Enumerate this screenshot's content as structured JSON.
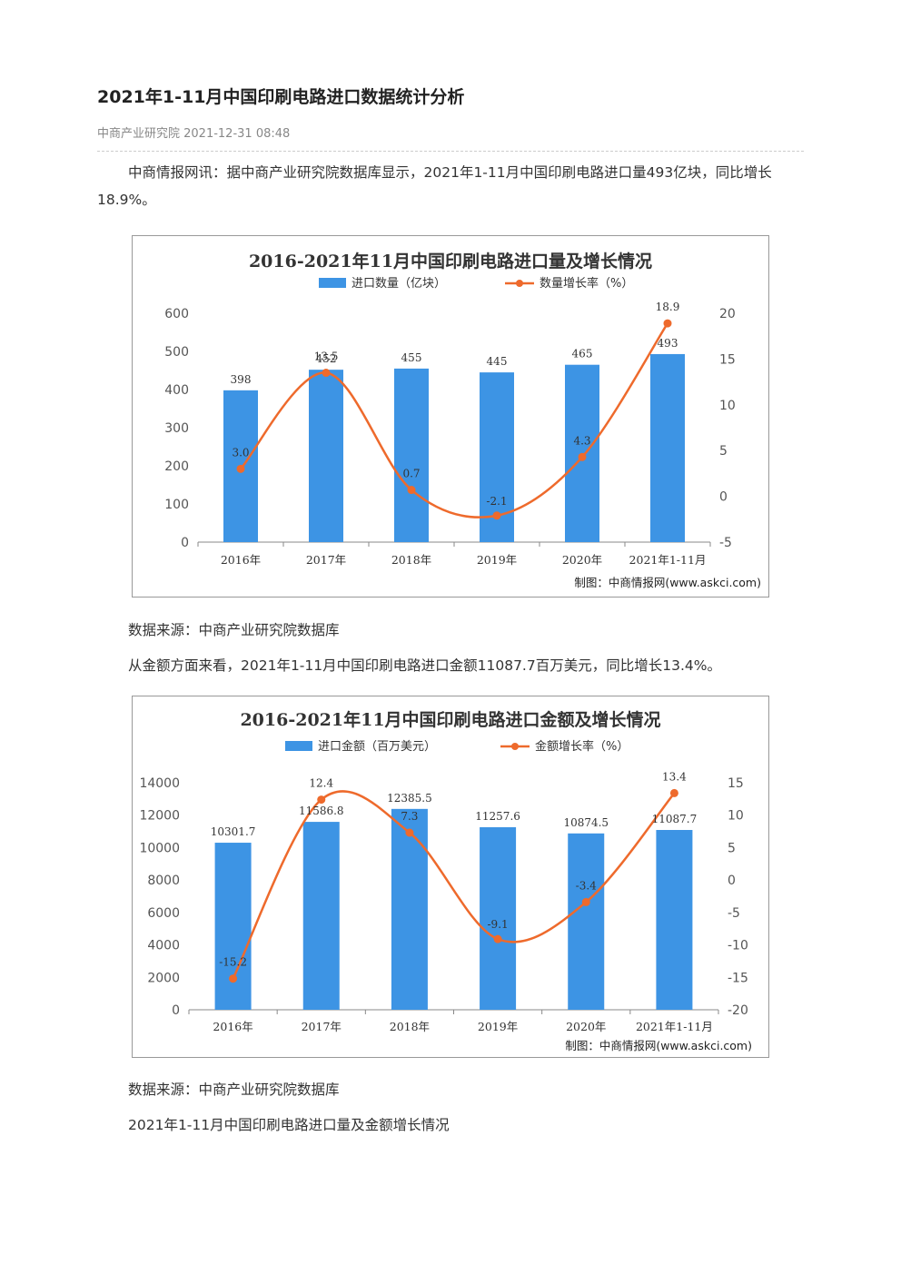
{
  "article": {
    "title": "2021年1-11月中国印刷电路进口数据统计分析",
    "meta": "中商产业研究院 2021-12-31 08:48",
    "intro": "中商情报网讯：据中商产业研究院数据库显示，2021年1-11月中国印刷电路进口量493亿块，同比增长18.9%。",
    "source1": "数据来源：中商产业研究院数据库",
    "para2": "从金额方面来看，2021年1-11月中国印刷电路进口金额11087.7百万美元，同比增长13.4%。",
    "source2": "数据来源：中商产业研究院数据库",
    "closing": "2021年1-11月中国印刷电路进口量及金额增长情况"
  },
  "colors": {
    "bar": "#3d94e4",
    "line": "#ee6a2c",
    "title_text": "#333333",
    "axis": "#555555"
  },
  "chart_data": [
    {
      "type": "bar",
      "title": "2016-2021年11月中国印刷电路进口量及增长情况",
      "categories": [
        "2016年",
        "2017年",
        "2018年",
        "2019年",
        "2020年",
        "2021年1-11月"
      ],
      "series": [
        {
          "name": "进口数量（亿块）",
          "type": "bar",
          "axis": "left",
          "values": [
            398,
            452,
            455,
            445,
            465,
            493
          ]
        },
        {
          "name": "数量增长率（%）",
          "type": "line",
          "axis": "right",
          "values": [
            3.0,
            13.5,
            0.7,
            -2.1,
            4.3,
            18.9
          ]
        }
      ],
      "left_axis": {
        "min": 0,
        "max": 600,
        "ticks": [
          0,
          100,
          200,
          300,
          400,
          500,
          600
        ]
      },
      "right_axis": {
        "min": -5,
        "max": 20,
        "ticks": [
          -5,
          0,
          5,
          10,
          15,
          20
        ]
      },
      "bar_labels": [
        "398",
        "452",
        "455",
        "445",
        "465",
        "493"
      ],
      "line_labels": [
        "3.0",
        "13.5",
        "0.7",
        "-2.1",
        "4.3",
        "18.9"
      ],
      "legend_position": "top",
      "credit": "制图：中商情报网(www.askci.com)"
    },
    {
      "type": "bar",
      "title": "2016-2021年11月中国印刷电路进口金额及增长情况",
      "categories": [
        "2016年",
        "2017年",
        "2018年",
        "2019年",
        "2020年",
        "2021年1-11月"
      ],
      "series": [
        {
          "name": "进口金额（百万美元）",
          "type": "bar",
          "axis": "left",
          "values": [
            10301.7,
            11586.8,
            12385.5,
            11257.6,
            10874.5,
            11087.7
          ]
        },
        {
          "name": "金额增长率（%）",
          "type": "line",
          "axis": "right",
          "values": [
            -15.2,
            12.4,
            7.3,
            -9.1,
            -3.4,
            13.4
          ]
        }
      ],
      "left_axis": {
        "min": 0,
        "max": 14000,
        "ticks": [
          0,
          2000,
          4000,
          6000,
          8000,
          10000,
          12000,
          14000
        ]
      },
      "right_axis": {
        "min": -20,
        "max": 15,
        "ticks": [
          -20,
          -15,
          -10,
          -5,
          0,
          5,
          10,
          15
        ]
      },
      "bar_labels": [
        "10301.7",
        "11586.8",
        "12385.5",
        "11257.6",
        "10874.5",
        "11087.7"
      ],
      "line_labels": [
        "-15.2",
        "12.4",
        "7.3",
        "-9.1",
        "-3.4",
        "13.4"
      ],
      "legend_position": "top",
      "credit": "制图：中商情报网(www.askci.com)"
    }
  ]
}
